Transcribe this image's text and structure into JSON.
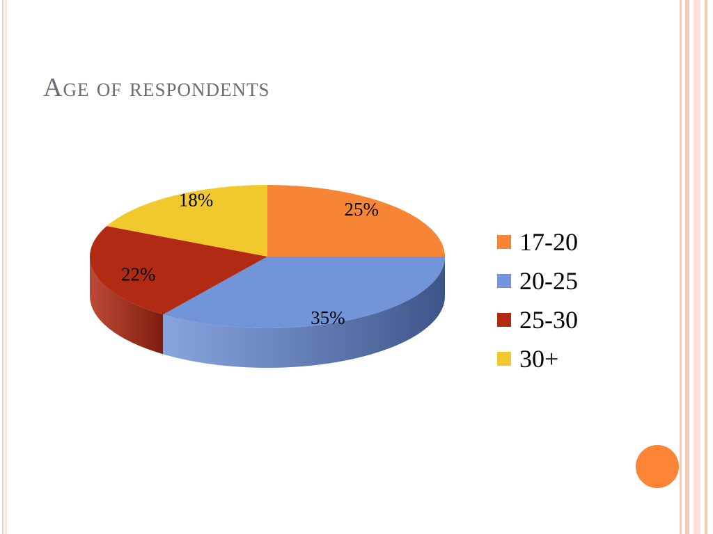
{
  "slide": {
    "title": "Age of respondents"
  },
  "theme": {
    "title_color": "#6b6b78",
    "frame_color": "#f5c9b8",
    "frame_band_color": "#fbe1d6",
    "accent_dot_color": "#fb8436"
  },
  "chart_data": {
    "type": "pie",
    "style": "3d",
    "categories": [
      "17-20",
      "20-25",
      "25-30",
      "30+"
    ],
    "values": [
      25,
      35,
      22,
      18
    ],
    "labels": [
      "25%",
      "35%",
      "22%",
      "18%"
    ],
    "colors": [
      "#f88536",
      "#7294d8",
      "#b12a14",
      "#f1c92d"
    ],
    "side_colors": [
      "#b85a1c",
      "#3d5488",
      "#7d1d0e",
      "#a88a1c"
    ],
    "legend_position": "right"
  }
}
